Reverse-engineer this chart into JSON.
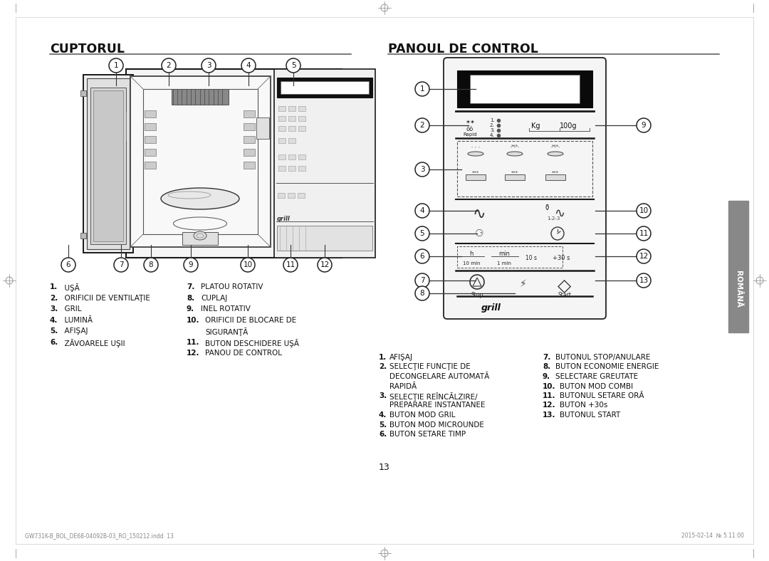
{
  "title_left": "CUPTORUL",
  "title_right": "PANOUL DE CONTROL",
  "bg_color": "#ffffff",
  "footer_left": "GW731K-B_BOL_DE68-04092B-03_RO_150212.indd  13",
  "footer_right": "2015-02-14  № 5.11:00",
  "page_number": "13",
  "left_col1": [
    [
      "1.",
      "UŞĂ"
    ],
    [
      "2.",
      "ORIFICII DE VENTILAŢIE"
    ],
    [
      "3.",
      "GRIL"
    ],
    [
      "4.",
      "LUMINĂ"
    ],
    [
      "5.",
      "AFIŞAJ"
    ],
    [
      "6.",
      "ZĂVOARELE UŞII"
    ]
  ],
  "left_col2": [
    [
      "7.",
      "PLATOU ROTATIV"
    ],
    [
      "8.",
      "CUPLAJ"
    ],
    [
      "9.",
      "INEL ROTATIV"
    ],
    [
      "10.",
      "ORIFICII DE BLOCARE DE"
    ],
    [
      "",
      "SIGURANŢĂ"
    ],
    [
      "11.",
      "BUTON DESCHIDERE UŞĂ"
    ],
    [
      "12.",
      "PANOU DE CONTROL"
    ]
  ],
  "right_col1": [
    [
      "1.",
      "AFIŞAJ"
    ],
    [
      "2.",
      "SELECŢIE FUNCŢIE DE"
    ],
    [
      "",
      "DECONGELARE AUTOMATĂ"
    ],
    [
      "",
      "RAPIDĂ"
    ],
    [
      "3.",
      "SELECŢIE REÎNCĂLZIRE/"
    ],
    [
      "",
      "PREPARARE INSTANTANEE"
    ],
    [
      "4.",
      "BUTON MOD GRIL"
    ],
    [
      "5.",
      "BUTON MOD MICROUNDE"
    ],
    [
      "6.",
      "BUTON SETARE TIMP"
    ]
  ],
  "right_col2": [
    [
      "7.",
      "BUTONUL STOP/ANULARE"
    ],
    [
      "8.",
      "BUTON ECONOMIE ENERGIE"
    ],
    [
      "9.",
      "SELECTARE GREUTATE"
    ],
    [
      "10.",
      "BUTON MOD COMBI"
    ],
    [
      "11.",
      "BUTONUL SETARE ORĂ"
    ],
    [
      "12.",
      "BUTON +30s"
    ],
    [
      "13.",
      "BUTONUL START"
    ]
  ]
}
